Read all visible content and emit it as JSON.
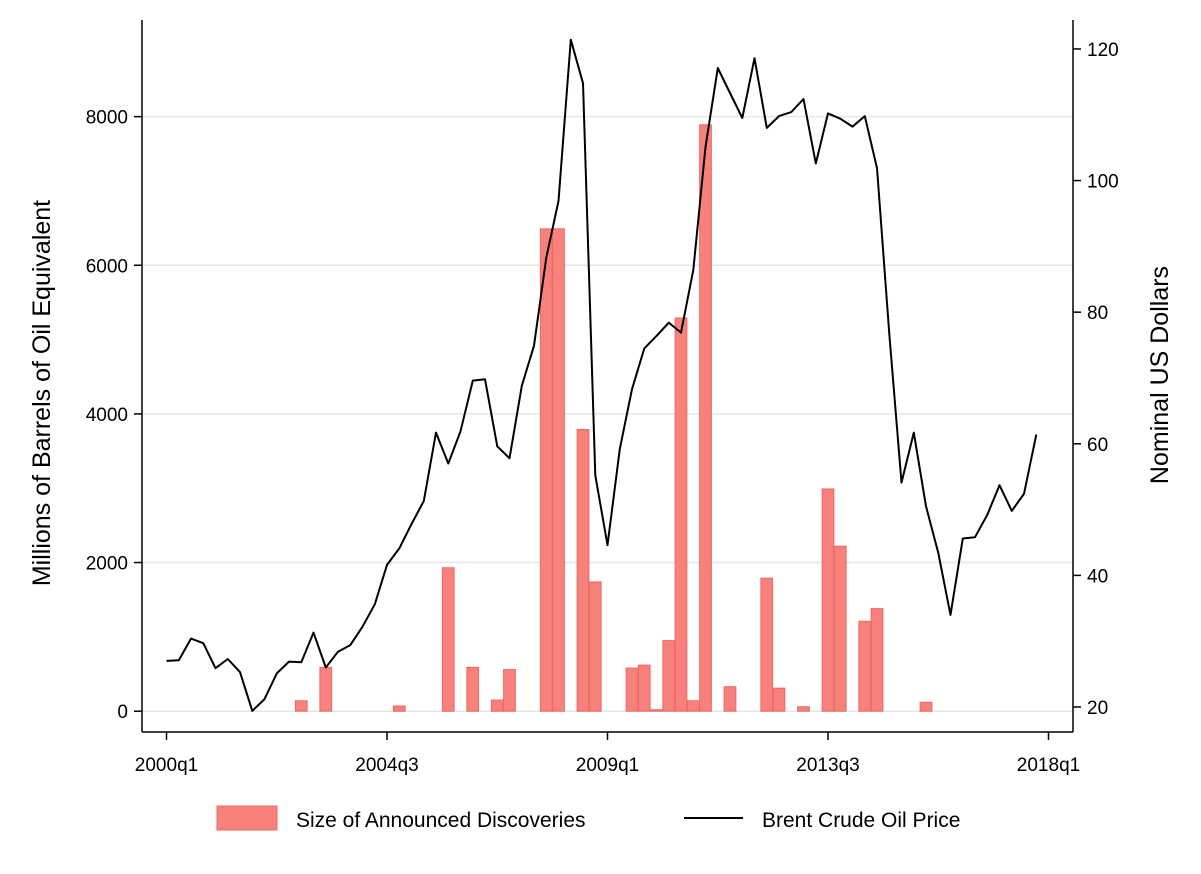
{
  "chart_data": {
    "type": "bar+line",
    "title": "",
    "xlabel": "",
    "x_ticks": [
      "2000q1",
      "2004q3",
      "2009q1",
      "2013q3",
      "2018q1"
    ],
    "x_tick_index": [
      0,
      18,
      36,
      54,
      72
    ],
    "xlim_quarters": [
      -2,
      74
    ],
    "left_axis": {
      "label": "Millions of Barrels of Oil Equivalent",
      "ticks": [
        "0",
        "2000",
        "4000",
        "6000",
        "8000"
      ],
      "tick_values": [
        0,
        2000,
        4000,
        6000,
        8000
      ],
      "ylim": [
        -280,
        9300
      ]
    },
    "right_axis": {
      "label": "Nominal US Dollars",
      "ticks": [
        "20",
        "40",
        "60",
        "80",
        "100",
        "120"
      ],
      "tick_values": [
        20,
        40,
        60,
        80,
        100,
        120
      ],
      "ylim": [
        16.2,
        124.4
      ]
    },
    "grid": "horizontal",
    "legend_placement": "bottom",
    "series": [
      {
        "name": "Size of Announced Discoveries",
        "type": "bar",
        "axis": "left",
        "color": "#f8827b",
        "edge_color": "#ea6a63",
        "bars": [
          {
            "q": 11,
            "v": 140
          },
          {
            "q": 13,
            "v": 590
          },
          {
            "q": 19,
            "v": 70
          },
          {
            "q": 23,
            "v": 1930
          },
          {
            "q": 25,
            "v": 590
          },
          {
            "q": 27,
            "v": 150
          },
          {
            "q": 28,
            "v": 560
          },
          {
            "q": 31,
            "v": 6490
          },
          {
            "q": 32,
            "v": 6490
          },
          {
            "q": 34,
            "v": 3790
          },
          {
            "q": 35,
            "v": 1740
          },
          {
            "q": 38,
            "v": 580
          },
          {
            "q": 39,
            "v": 620
          },
          {
            "q": 40,
            "v": 20
          },
          {
            "q": 41,
            "v": 950
          },
          {
            "q": 42,
            "v": 5290
          },
          {
            "q": 43,
            "v": 140
          },
          {
            "q": 44,
            "v": 7890
          },
          {
            "q": 46,
            "v": 330
          },
          {
            "q": 49,
            "v": 1790
          },
          {
            "q": 50,
            "v": 310
          },
          {
            "q": 52,
            "v": 60
          },
          {
            "q": 54,
            "v": 2990
          },
          {
            "q": 55,
            "v": 2220
          },
          {
            "q": 57,
            "v": 1210
          },
          {
            "q": 58,
            "v": 1380
          },
          {
            "q": 62,
            "v": 120
          }
        ]
      },
      {
        "name": "Brent Crude Oil Price",
        "type": "line",
        "axis": "right",
        "color": "#000000",
        "values": [
          27.0,
          27.1,
          30.4,
          29.7,
          25.9,
          27.3,
          25.3,
          19.4,
          21.2,
          25.1,
          26.9,
          26.8,
          31.3,
          26.0,
          28.4,
          29.4,
          32.2,
          35.6,
          41.6,
          44.1,
          47.8,
          51.3,
          61.7,
          57.0,
          61.9,
          69.6,
          69.8,
          59.6,
          57.8,
          68.8,
          74.9,
          88.3,
          96.9,
          121.4,
          114.8,
          55.2,
          44.6,
          59.2,
          68.3,
          74.5,
          76.4,
          78.4,
          76.9,
          86.4,
          105.1,
          117.1,
          113.3,
          109.5,
          118.6,
          108.0,
          109.8,
          110.4,
          112.4,
          102.6,
          110.2,
          109.4,
          108.2,
          109.8,
          101.9,
          76.7,
          54.1,
          61.7,
          50.5,
          43.4,
          34.0,
          45.6,
          45.8,
          49.2,
          53.7,
          49.8,
          52.4,
          61.4
        ]
      }
    ]
  }
}
